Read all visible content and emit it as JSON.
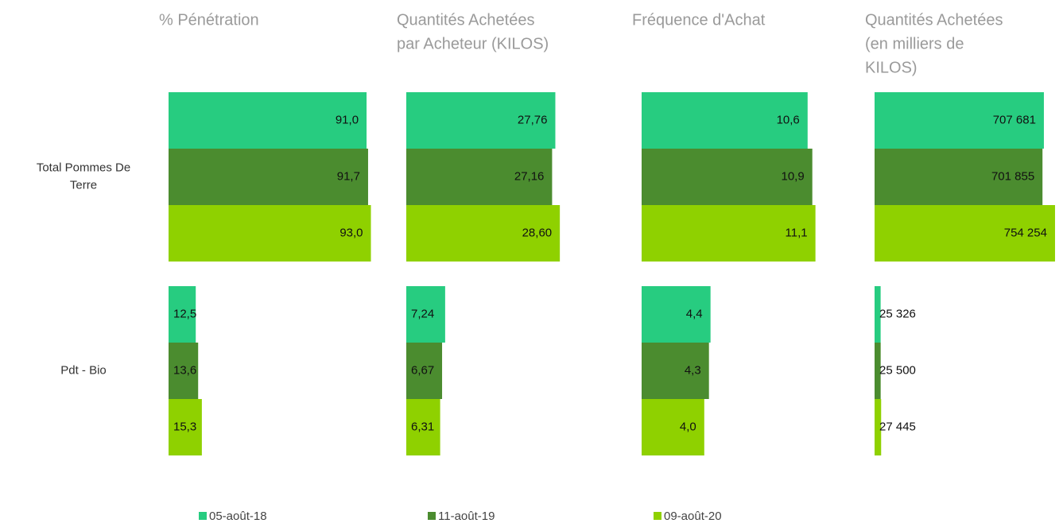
{
  "categories": [
    [
      "Total Pommes De",
      "Terre"
    ],
    [
      "Pdt - Bio"
    ]
  ],
  "legend": [
    {
      "name": "05-août-18",
      "color": "#27cc80"
    },
    {
      "name": "11-août-19",
      "color": "#4b8c2f"
    },
    {
      "name": "09-août-20",
      "color": "#8fd100"
    }
  ],
  "chart_data": [
    {
      "type": "bar",
      "orientation": "horizontal",
      "title": [
        "% Pénétration"
      ],
      "xlim": [
        0,
        95
      ],
      "series": [
        {
          "values": [
            91.0,
            12.5
          ],
          "value_labels": [
            "91,0",
            "12,5"
          ]
        },
        {
          "values": [
            91.7,
            13.6
          ],
          "value_labels": [
            "91,7",
            "13,6"
          ]
        },
        {
          "values": [
            93.0,
            15.3
          ],
          "value_labels": [
            "93,0",
            "15,3"
          ]
        }
      ]
    },
    {
      "type": "bar",
      "orientation": "horizontal",
      "title": [
        "Quantités Achetées",
        "par Acheteur (KILOS)"
      ],
      "xlim": [
        0,
        38.5
      ],
      "series": [
        {
          "values": [
            27.76,
            7.24
          ],
          "value_labels": [
            "27,76",
            "7,24"
          ]
        },
        {
          "values": [
            27.16,
            6.67
          ],
          "value_labels": [
            "27,16",
            "6,67"
          ]
        },
        {
          "values": [
            28.6,
            6.31
          ],
          "value_labels": [
            "28,60",
            "6,31"
          ]
        }
      ]
    },
    {
      "type": "bar",
      "orientation": "horizontal",
      "title": [
        "Fréquence d'Achat"
      ],
      "xlim": [
        0,
        13.2
      ],
      "series": [
        {
          "values": [
            10.6,
            4.4
          ],
          "value_labels": [
            "10,6",
            "4,4"
          ]
        },
        {
          "values": [
            10.9,
            4.3
          ],
          "value_labels": [
            "10,9",
            "4,3"
          ]
        },
        {
          "values": [
            11.1,
            4.0
          ],
          "value_labels": [
            "11,1",
            "4,0"
          ]
        }
      ]
    },
    {
      "type": "bar",
      "orientation": "horizontal",
      "title": [
        "Quantités Achetées",
        "(en milliers de",
        "KILOS)"
      ],
      "xlim": [
        0,
        864000
      ],
      "series": [
        {
          "values": [
            707681,
            25326
          ],
          "value_labels": [
            "707 681",
            "25 326"
          ]
        },
        {
          "values": [
            701855,
            25500
          ],
          "value_labels": [
            "701 855",
            "25 500"
          ]
        },
        {
          "values": [
            754254,
            27445
          ],
          "value_labels": [
            "754 254",
            "27 445"
          ]
        }
      ]
    }
  ]
}
